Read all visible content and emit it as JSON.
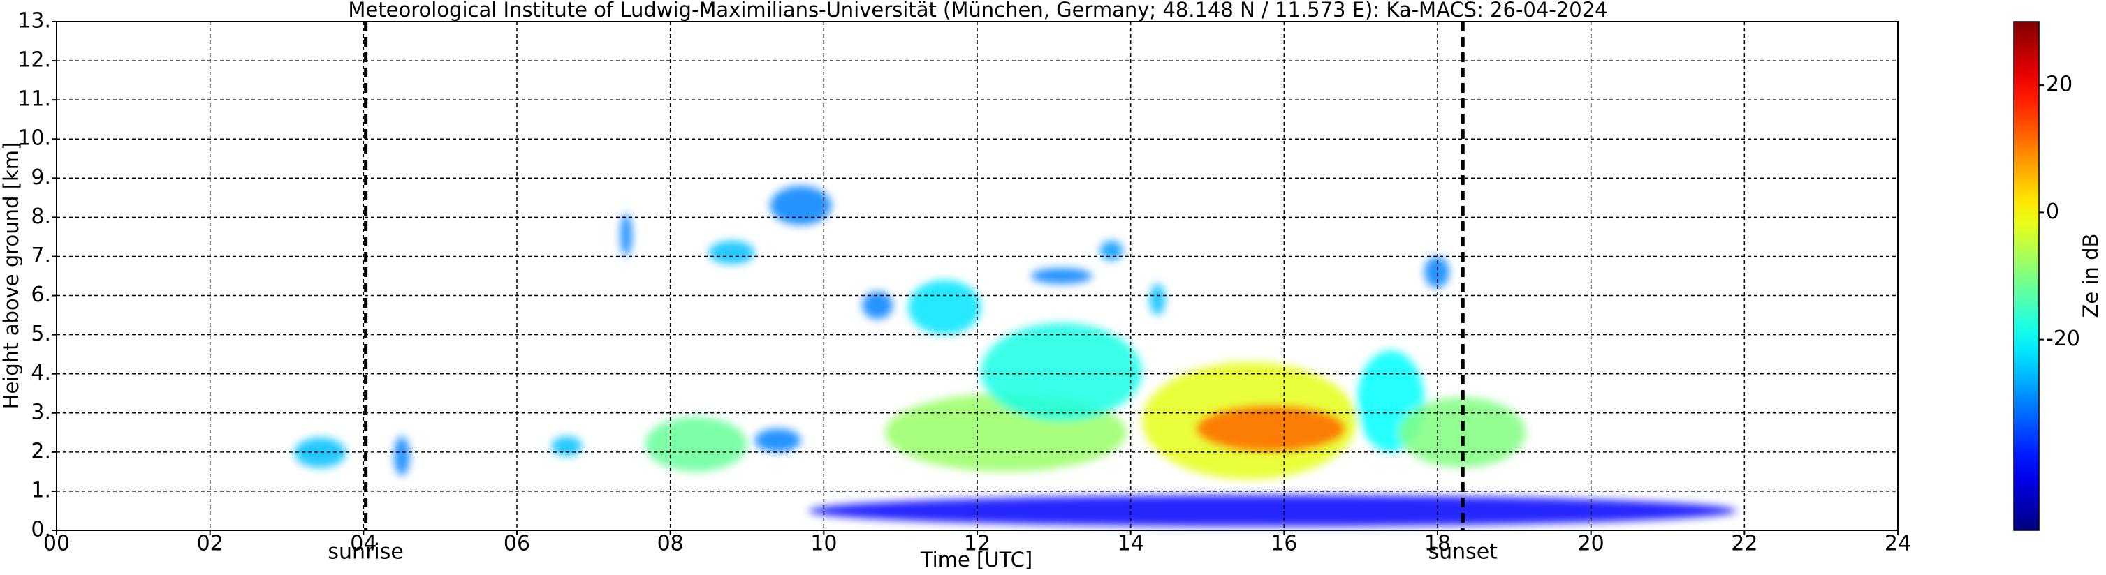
{
  "chart_data": {
    "type": "radar-timeheight",
    "title": "Meteorological Institute of Ludwig-Maximilians-Universität (München, Germany; 48.148 N / 11.573 E):    Ka-MACS: 26-04-2024",
    "xlabel": "Time [UTC]",
    "ylabel": "Height above ground [km]",
    "xlim": [
      0,
      24
    ],
    "xticks": [
      {
        "value": 0,
        "label": "00"
      },
      {
        "value": 2,
        "label": "02"
      },
      {
        "value": 4,
        "label": "04"
      },
      {
        "value": 6,
        "label": "06"
      },
      {
        "value": 8,
        "label": "08"
      },
      {
        "value": 10,
        "label": "10"
      },
      {
        "value": 12,
        "label": "12"
      },
      {
        "value": 14,
        "label": "14"
      },
      {
        "value": 16,
        "label": "16"
      },
      {
        "value": 18,
        "label": "18"
      },
      {
        "value": 20,
        "label": "20"
      },
      {
        "value": 22,
        "label": "22"
      },
      {
        "value": 24,
        "label": "24"
      }
    ],
    "ylim": [
      0,
      13
    ],
    "yticks": [
      {
        "value": 0,
        "label": "0."
      },
      {
        "value": 1,
        "label": "1."
      },
      {
        "value": 2,
        "label": "2."
      },
      {
        "value": 3,
        "label": "3."
      },
      {
        "value": 4,
        "label": "4."
      },
      {
        "value": 5,
        "label": "5."
      },
      {
        "value": 6,
        "label": "6."
      },
      {
        "value": 7,
        "label": "7."
      },
      {
        "value": 8,
        "label": "8."
      },
      {
        "value": 9,
        "label": "9."
      },
      {
        "value": 10,
        "label": "10."
      },
      {
        "value": 11,
        "label": "11."
      },
      {
        "value": 12,
        "label": "12."
      },
      {
        "value": 13,
        "label": "13."
      }
    ],
    "grid": true,
    "colorbar": {
      "label": "Ze in dB",
      "lim": [
        -50,
        30
      ],
      "ticks": [
        -20,
        0,
        20
      ],
      "colormap": "jet"
    },
    "annotations": [
      {
        "label": "sunrise",
        "x": 4.03
      },
      {
        "label": "sunset",
        "x": 18.33
      }
    ],
    "echoes": [
      {
        "t": [
          3.1,
          3.77
        ],
        "h": [
          1.6,
          2.37
        ],
        "ze": -25
      },
      {
        "t": [
          4.4,
          4.6
        ],
        "h": [
          1.4,
          2.4
        ],
        "ze": -30
      },
      {
        "t": [
          6.45,
          6.85
        ],
        "h": [
          1.9,
          2.4
        ],
        "ze": -25
      },
      {
        "t": [
          7.67,
          9.0
        ],
        "h": [
          1.5,
          2.9
        ],
        "ze": -12
      },
      {
        "t": [
          9.1,
          9.7
        ],
        "h": [
          2.0,
          2.6
        ],
        "ze": -30
      },
      {
        "t": [
          7.35,
          7.5
        ],
        "h": [
          7.0,
          8.1
        ],
        "ze": -30
      },
      {
        "t": [
          8.5,
          9.1
        ],
        "h": [
          6.8,
          7.4
        ],
        "ze": -25
      },
      {
        "t": [
          9.3,
          10.1
        ],
        "h": [
          7.8,
          8.8
        ],
        "ze": -30
      },
      {
        "t": [
          10.5,
          10.9
        ],
        "h": [
          5.4,
          6.1
        ],
        "ze": -30
      },
      {
        "t": [
          11.1,
          12.05
        ],
        "h": [
          5.0,
          6.4
        ],
        "ze": -22
      },
      {
        "t": [
          10.8,
          13.95
        ],
        "h": [
          1.5,
          3.5
        ],
        "ze": -8
      },
      {
        "t": [
          12.05,
          14.15
        ],
        "h": [
          2.8,
          5.3
        ],
        "ze": -18
      },
      {
        "t": [
          12.7,
          13.5
        ],
        "h": [
          6.3,
          6.7
        ],
        "ze": -30
      },
      {
        "t": [
          13.6,
          13.9
        ],
        "h": [
          6.9,
          7.4
        ],
        "ze": -28
      },
      {
        "t": [
          14.25,
          14.45
        ],
        "h": [
          5.5,
          6.3
        ],
        "ze": -25
      },
      {
        "t": [
          14.15,
          16.95
        ],
        "h": [
          1.3,
          4.3
        ],
        "ze": -2
      },
      {
        "t": [
          14.85,
          16.8
        ],
        "h": [
          2.0,
          3.2
        ],
        "ze": 12
      },
      {
        "t": [
          16.95,
          17.83
        ],
        "h": [
          2.0,
          4.6
        ],
        "ze": -20
      },
      {
        "t": [
          17.5,
          19.15
        ],
        "h": [
          1.6,
          3.4
        ],
        "ze": -10
      },
      {
        "t": [
          17.83,
          18.15
        ],
        "h": [
          6.2,
          7.0
        ],
        "ze": -30
      },
      {
        "t": [
          9.8,
          21.9
        ],
        "h": [
          0.1,
          0.9
        ],
        "ze": -40
      }
    ]
  }
}
